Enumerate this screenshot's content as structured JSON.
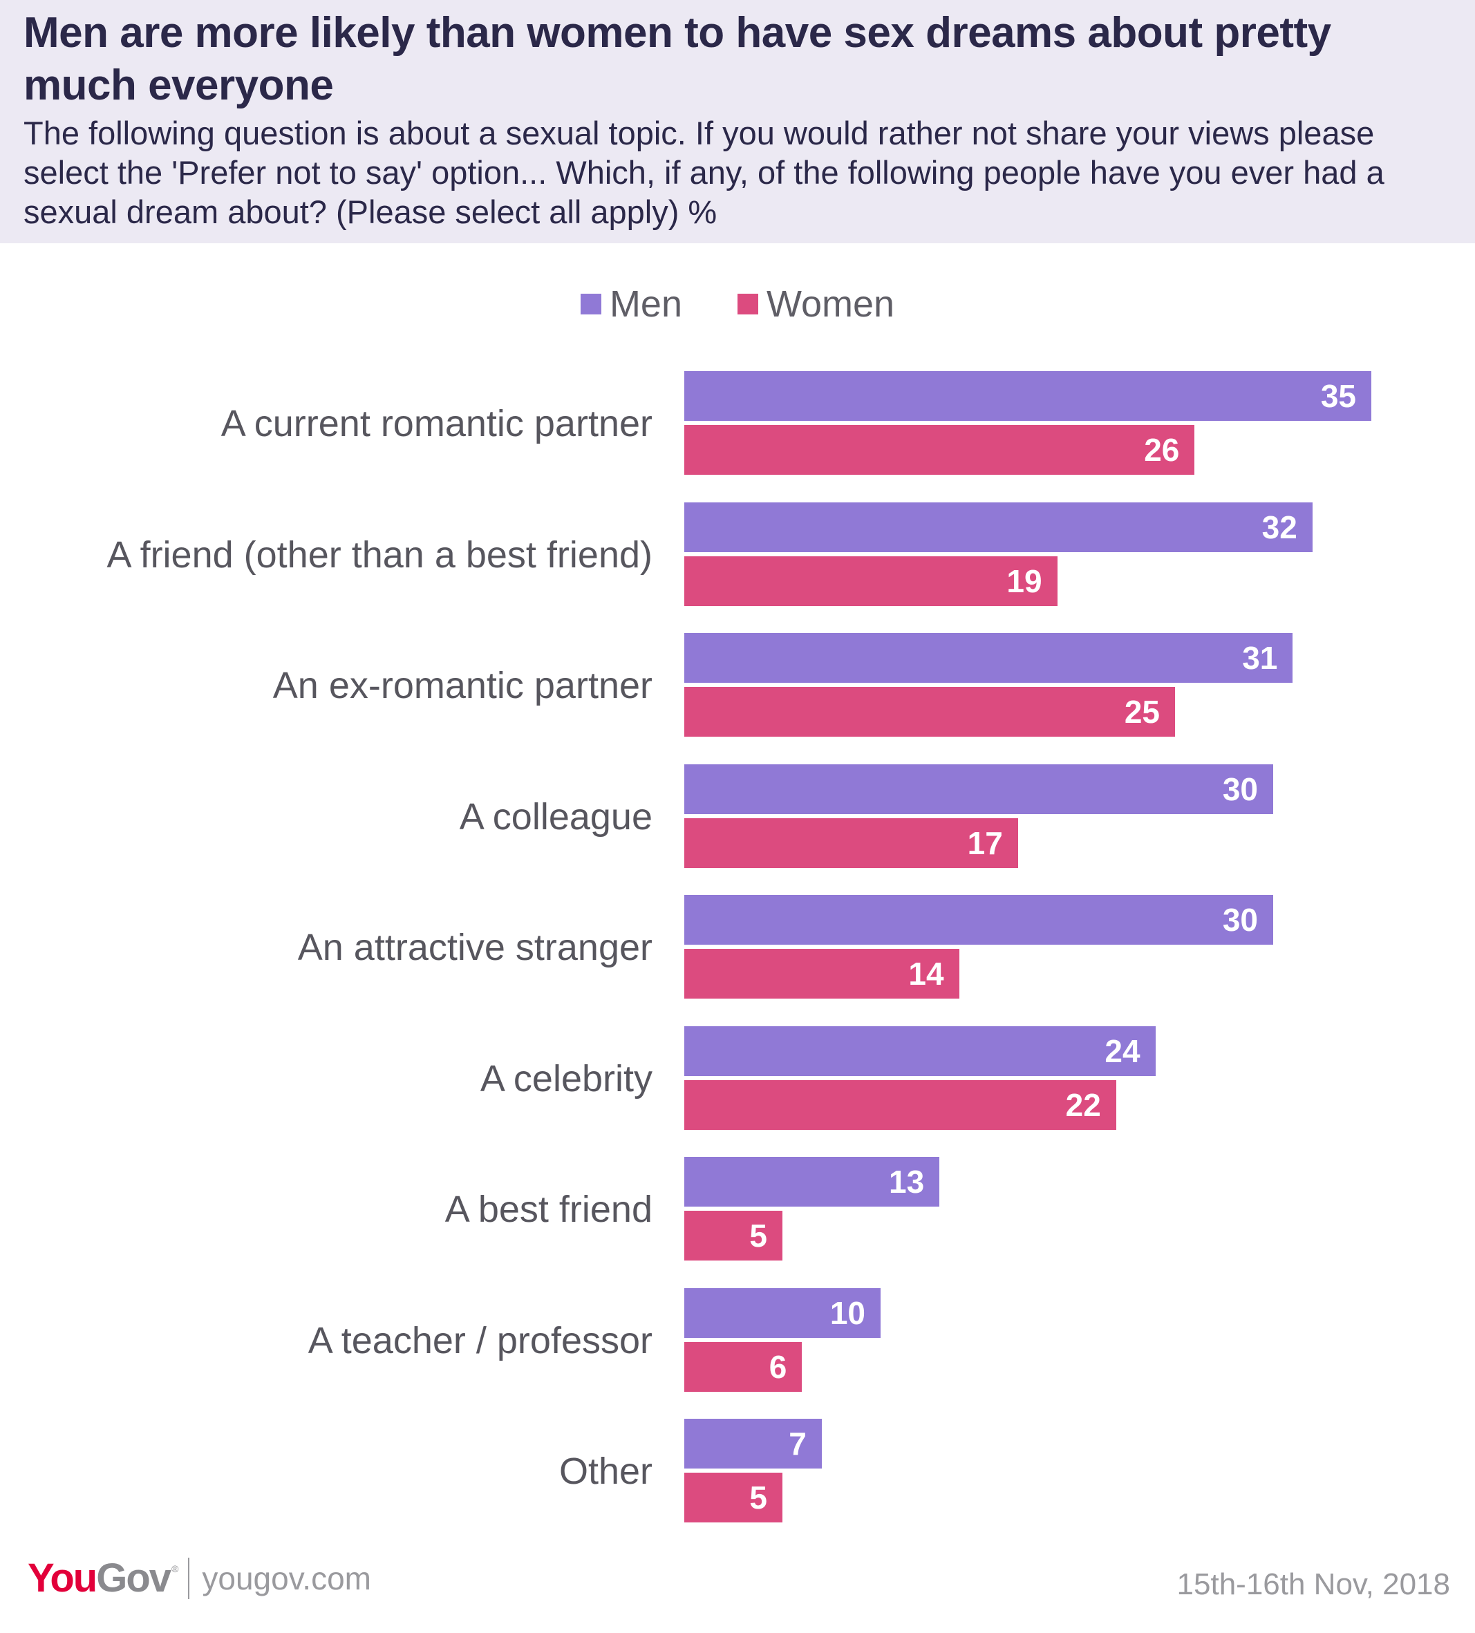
{
  "header": {
    "title": "Men are more likely than women to have sex dreams about pretty much everyone",
    "subtitle": "The following question is about a sexual topic. If you would rather not share your views please select the 'Prefer not to say' option... Which, if any, of the following people have you ever had a sexual dream about? (Please select all apply) %"
  },
  "legend": {
    "men": "Men",
    "women": "Women"
  },
  "colors": {
    "men": "#9079d6",
    "women": "#dc4b7f",
    "header_bg": "#ece9f3",
    "title": "#2b2849"
  },
  "chart_data": {
    "type": "bar",
    "orientation": "horizontal",
    "title": "Men are more likely than women to have sex dreams about pretty much everyone",
    "unit": "%",
    "categories": [
      "A current romantic partner",
      "A friend (other than a best friend)",
      "An ex-romantic partner",
      "A colleague",
      "An attractive stranger",
      "A celebrity",
      "A best friend",
      "A teacher / professor",
      "Other"
    ],
    "series": [
      {
        "name": "Men",
        "values": [
          35,
          32,
          31,
          30,
          30,
          24,
          13,
          10,
          7
        ]
      },
      {
        "name": "Women",
        "values": [
          26,
          19,
          25,
          17,
          14,
          22,
          5,
          6,
          5
        ]
      }
    ],
    "xlim": [
      0,
      35
    ],
    "grid": false,
    "legend_position": "top-center"
  },
  "footer": {
    "logo_you": "You",
    "logo_gov": "Gov",
    "logo_reg": "®",
    "site": "yougov.com",
    "date": "15th-16th Nov, 2018"
  }
}
